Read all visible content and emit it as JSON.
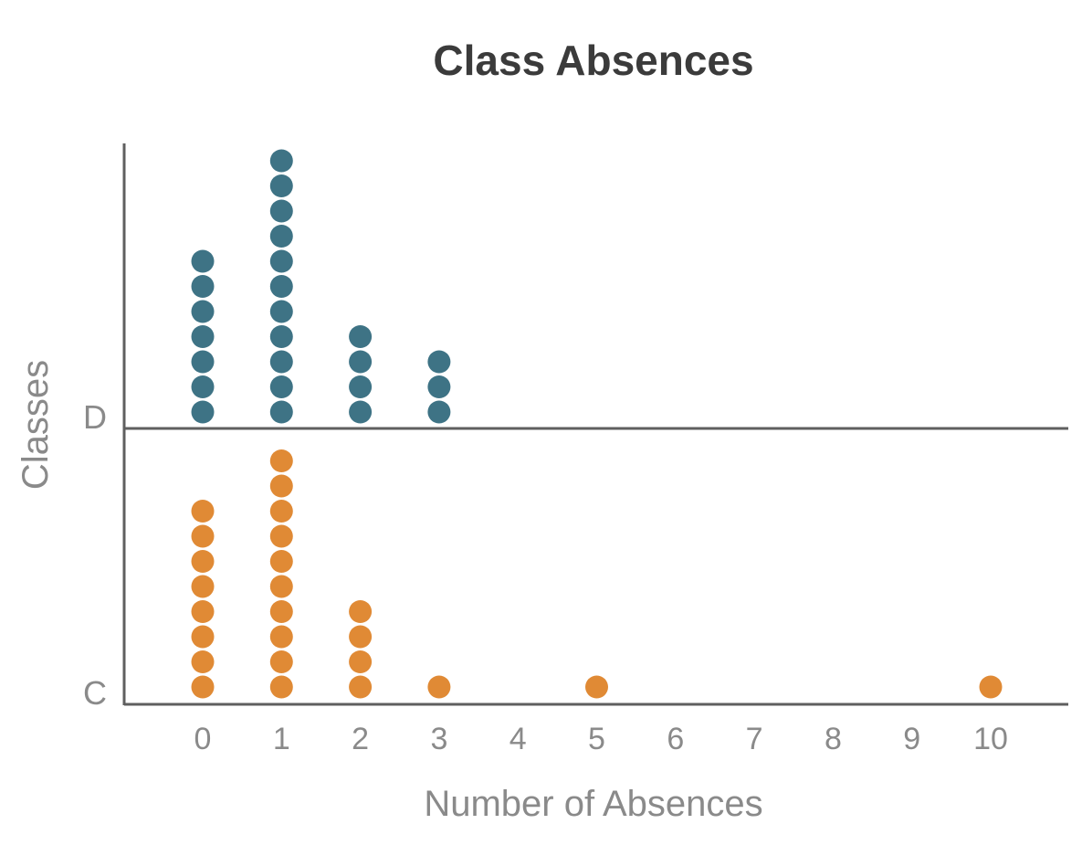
{
  "chart_data": {
    "type": "scatter",
    "subtype": "dot-plot",
    "title": "Class Absences",
    "xlabel": "Number of Absences",
    "ylabel": "Classes",
    "x_ticks": [
      "0",
      "1",
      "2",
      "3",
      "4",
      "5",
      "6",
      "7",
      "8",
      "9",
      "10"
    ],
    "xlim": [
      0,
      10
    ],
    "categories": [
      "D",
      "C"
    ],
    "grid": false,
    "legend": "none",
    "series": [
      {
        "category": "D",
        "color": "#3e7385",
        "points": [
          {
            "x": 0,
            "count": 7
          },
          {
            "x": 1,
            "count": 11
          },
          {
            "x": 2,
            "count": 4
          },
          {
            "x": 3,
            "count": 3
          }
        ]
      },
      {
        "category": "C",
        "color": "#e08a35",
        "points": [
          {
            "x": 0,
            "count": 8
          },
          {
            "x": 1,
            "count": 10
          },
          {
            "x": 2,
            "count": 4
          },
          {
            "x": 3,
            "count": 1
          },
          {
            "x": 5,
            "count": 1
          },
          {
            "x": 10,
            "count": 1
          }
        ]
      }
    ]
  }
}
